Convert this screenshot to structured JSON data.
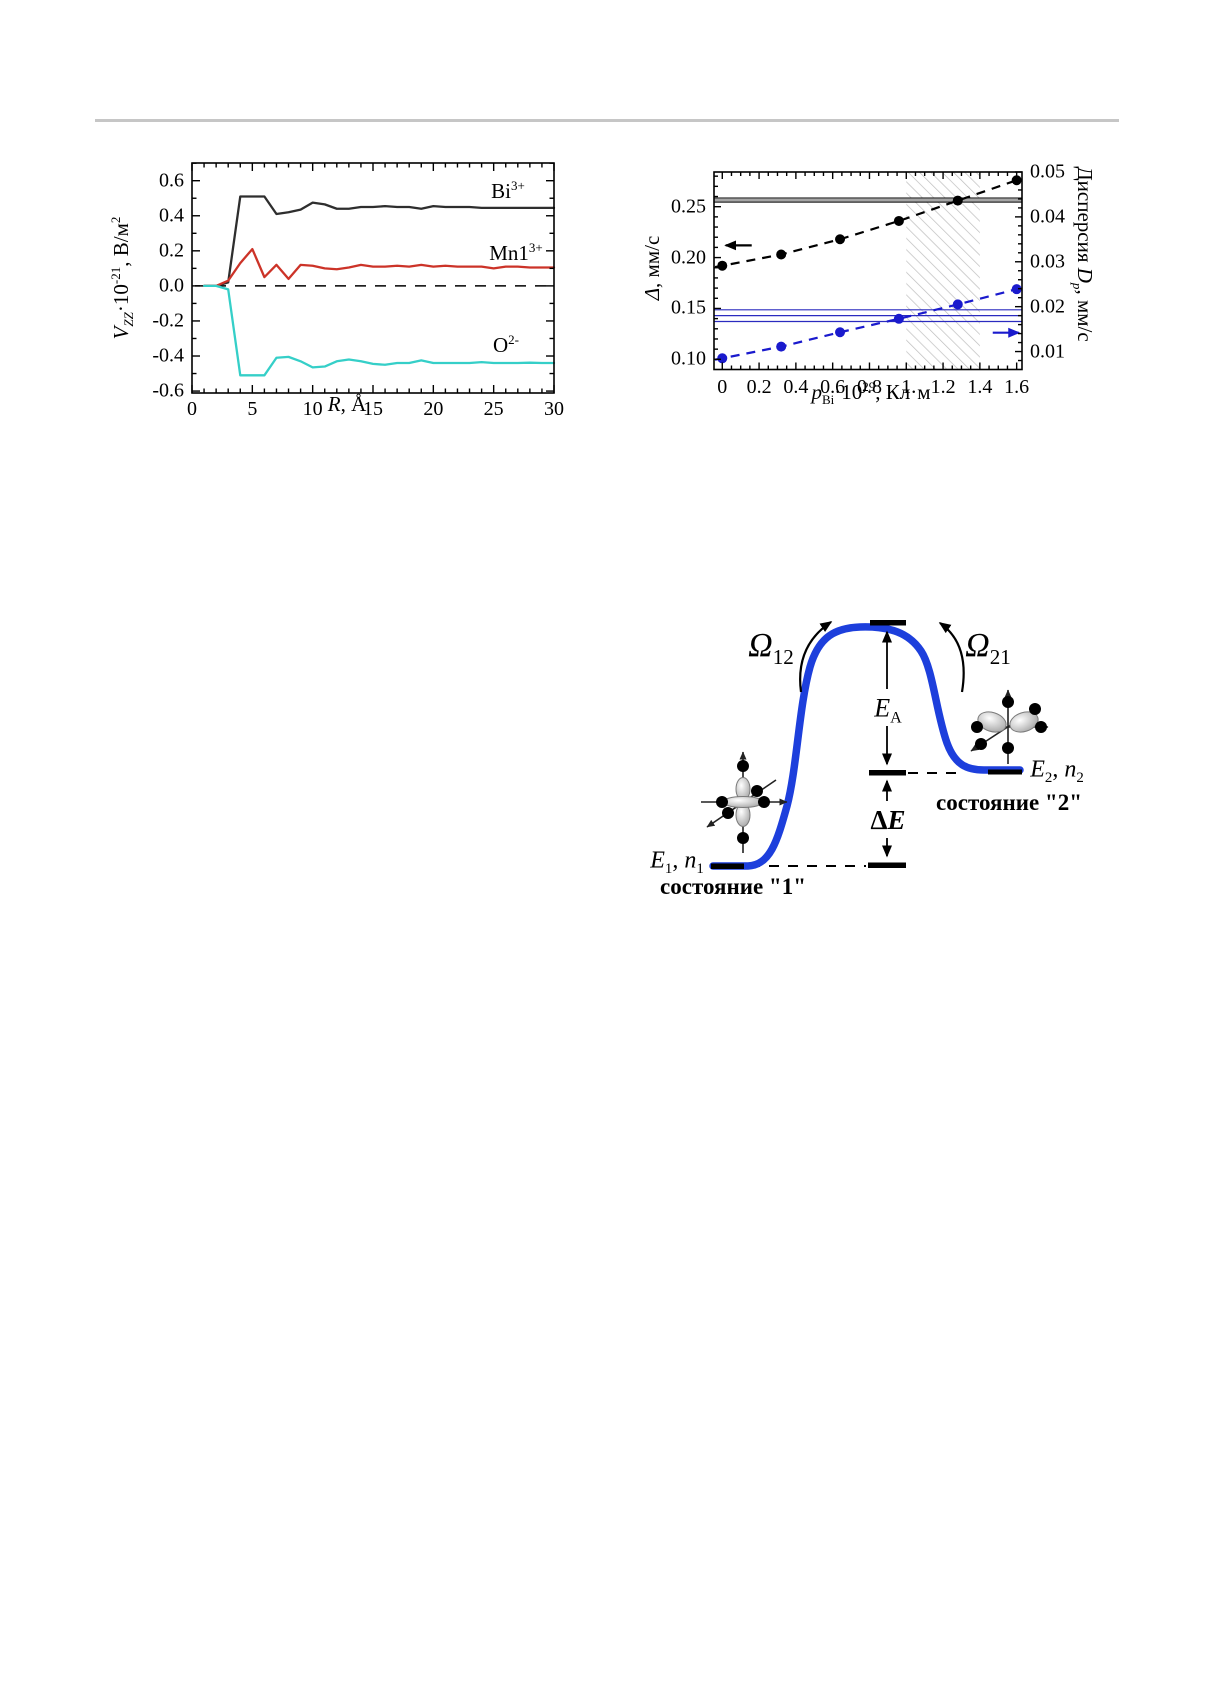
{
  "page": {
    "divider": ""
  },
  "chart_data": [
    {
      "id": "vzz_vs_r",
      "type": "line",
      "title": "",
      "xlabel": "*R*, Å",
      "ylabel": "*V*_{*ZZ*}·10^{-21}, В/м^{2}",
      "xlim": [
        0,
        30
      ],
      "ylim": [
        -0.611,
        0.701
      ],
      "grid": false,
      "legend_position": "inside-right",
      "x_ticks": [
        0,
        5,
        10,
        15,
        20,
        25,
        30
      ],
      "x_tick_labels": [
        "0",
        "5",
        "10",
        "15",
        "20",
        "25",
        "30"
      ],
      "x_minor_step": 1,
      "y_ticks": [
        -0.6,
        -0.4,
        -0.2,
        0.0,
        0.2,
        0.4,
        0.6
      ],
      "y_tick_labels": [
        "-0.6",
        "-0.4",
        "-0.2",
        "0.0",
        "0.2",
        "0.4",
        "0.6"
      ],
      "y_minor_step": 0.1,
      "zero_dashed_line": true,
      "x": [
        1,
        2,
        3,
        4,
        5,
        6,
        7,
        8,
        9,
        10,
        11,
        12,
        13,
        14,
        15,
        16,
        17,
        18,
        19,
        20,
        21,
        22,
        23,
        24,
        25,
        26,
        27,
        28,
        29,
        30
      ],
      "series": [
        {
          "name": "Bi3+",
          "label_rich": "Bi^{3+}",
          "color": "#2e2e2e",
          "values": [
            0,
            0,
            0.02,
            0.51,
            0.51,
            0.51,
            0.41,
            0.42,
            0.435,
            0.475,
            0.465,
            0.44,
            0.44,
            0.45,
            0.45,
            0.455,
            0.45,
            0.45,
            0.44,
            0.455,
            0.45,
            0.45,
            0.45,
            0.445,
            0.445,
            0.445,
            0.445,
            0.445,
            0.445,
            0.445
          ]
        },
        {
          "name": "Mn13+",
          "label_rich": "Mn1^{3+}",
          "color": "#cc3328",
          "values": [
            0,
            0,
            0.03,
            0.13,
            0.21,
            0.05,
            0.12,
            0.04,
            0.12,
            0.115,
            0.1,
            0.095,
            0.105,
            0.12,
            0.11,
            0.11,
            0.115,
            0.11,
            0.12,
            0.11,
            0.115,
            0.11,
            0.11,
            0.11,
            0.1,
            0.11,
            0.11,
            0.105,
            0.105,
            0.105
          ]
        },
        {
          "name": "O2-",
          "label_rich": "O^{2-}",
          "color": "#35cfc8",
          "values": [
            0,
            0,
            -0.02,
            -0.51,
            -0.51,
            -0.51,
            -0.41,
            -0.405,
            -0.43,
            -0.465,
            -0.46,
            -0.43,
            -0.42,
            -0.43,
            -0.445,
            -0.45,
            -0.44,
            -0.44,
            -0.425,
            -0.44,
            -0.44,
            -0.44,
            -0.44,
            -0.435,
            -0.44,
            -0.44,
            -0.44,
            -0.438,
            -0.44,
            -0.44
          ]
        }
      ]
    },
    {
      "id": "delta_and_dispersion_vs_pbi",
      "type": "scatter-line",
      "title": "",
      "xlabel": "*p*_{Bi}·10^{29}, Кл·м",
      "ylabel_left": "*Δ*, мм/с",
      "ylabel_right": "Дисперсия *D*_{*p*}, мм/с",
      "xlim": [
        -0.045,
        1.629
      ],
      "ylim_left": [
        0.09,
        0.2841
      ],
      "ylim_right": [
        0.006,
        0.05
      ],
      "x_ticks": [
        0,
        0.2,
        0.4,
        0.6,
        0.8,
        1,
        1.2,
        1.4,
        1.6
      ],
      "x_tick_labels": [
        "0",
        "0.2",
        "0.4",
        "0.6",
        "0.8",
        "1",
        "1.2",
        "1.4",
        "1.6"
      ],
      "x_minor_step": 0.05,
      "yl_ticks": [
        0.1,
        0.15,
        0.2,
        0.25
      ],
      "yl_tick_labels": [
        "0.10",
        "0.15",
        "0.20",
        "0.25"
      ],
      "yl_minor_step": 0.01,
      "yr_ticks": [
        0.01,
        0.02,
        0.03,
        0.04,
        0.05
      ],
      "yr_tick_labels": [
        "0.01",
        "0.02",
        "0.03",
        "0.04",
        "0.05"
      ],
      "yr_minor_step": 0.002,
      "x": [
        0,
        0.32,
        0.64,
        0.96,
        1.28,
        1.6
      ],
      "series": [
        {
          "name": "Delta",
          "axis": "left",
          "color": "#000000",
          "marker": "circle",
          "line": "dashed",
          "values": [
            0.192,
            0.203,
            0.218,
            0.236,
            0.256,
            0.276
          ]
        },
        {
          "name": "Dp",
          "axis": "right",
          "color": "#1a1acd",
          "marker": "circle",
          "line": "dashed",
          "values": [
            0.0085,
            0.0111,
            0.0143,
            0.0173,
            0.0205,
            0.0239
          ]
        }
      ],
      "ref_lines_left": [
        {
          "v": 0.2585,
          "color": "#000000",
          "w": 1.1
        },
        {
          "v": 0.2565,
          "color": "#a5a5a5",
          "w": 3.5
        },
        {
          "v": 0.2545,
          "color": "#000000",
          "w": 1.1
        }
      ],
      "ref_lines_right": [
        {
          "v": 0.0193,
          "color": "#2b2bbf",
          "w": 1.2
        },
        {
          "v": 0.018,
          "color": "#2b2bbf",
          "w": 1.2
        },
        {
          "v": 0.0167,
          "color": "#2b2bbf",
          "w": 1.2
        }
      ],
      "hatch_band_x": [
        1.0,
        1.4
      ],
      "annotations": [
        {
          "shape": "arrow-left",
          "axis": "left",
          "x": 0.16,
          "y": 0.212,
          "color": "#000000"
        },
        {
          "shape": "arrow-right",
          "axis": "right",
          "x": 1.47,
          "y": 0.0142,
          "color": "#1a1acd"
        }
      ]
    }
  ],
  "diagram": {
    "omega12": "*Ω*_{12}",
    "omega21": "*Ω*_{21}",
    "activation_energy": "*E*_{A}",
    "delta_e": "Δ*E*",
    "level1": "*E*_{1}, *n*_{1}",
    "level2": "*E*_{2}, *n*_{2}",
    "state1": "состояние \"1\"",
    "state2": "состояние \"2\"",
    "curve_color": "#1d3fdc"
  }
}
